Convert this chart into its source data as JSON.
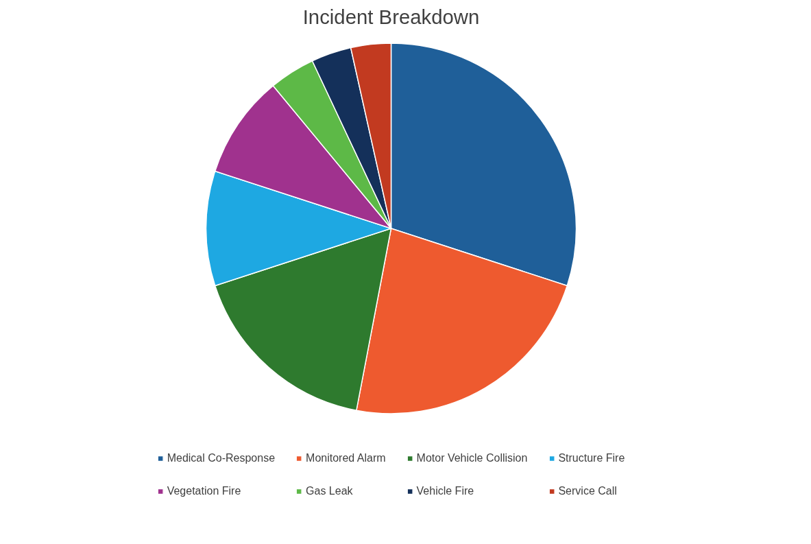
{
  "chart_data": {
    "type": "pie",
    "title": "Incident Breakdown",
    "categories": [
      "Medical Co-Response",
      "Monitored Alarm",
      "Motor Vehicle Collision",
      "Structure Fire",
      "Vegetation Fire",
      "Gas Leak",
      "Vehicle Fire",
      "Service Call"
    ],
    "values": [
      30,
      23,
      17,
      10,
      9,
      4,
      3.5,
      3.5
    ],
    "colors": [
      "#1f5f99",
      "#ee5a2f",
      "#2e7a2e",
      "#1ea8e2",
      "#a0328e",
      "#5db947",
      "#14305a",
      "#c23a20"
    ],
    "legend": "bottom"
  }
}
